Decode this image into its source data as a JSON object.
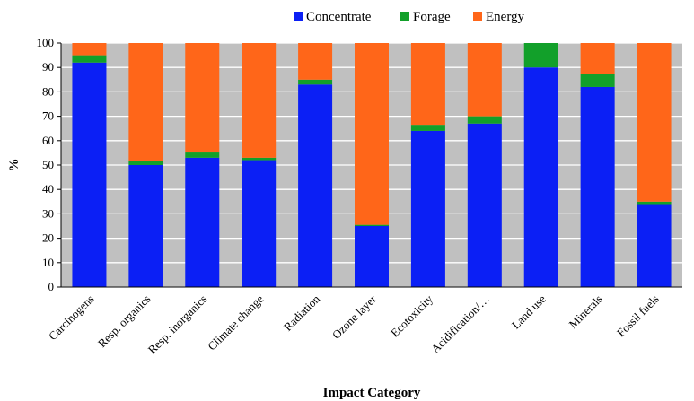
{
  "chart_data": {
    "type": "bar",
    "stacked": true,
    "categories": [
      "Carcinogens",
      "Resp. organics",
      "Resp. inorganics",
      "Climate change",
      "Radiation",
      "Ozone layer",
      "Ecotoxicity",
      "Acidification/…",
      "Land use",
      "Minerals",
      "Fossil fuels"
    ],
    "series": [
      {
        "name": "Concentrate",
        "color": "#0b1ff5",
        "values": [
          92,
          50,
          53,
          52,
          83,
          25,
          64,
          67,
          90,
          82,
          34
        ]
      },
      {
        "name": "Forage",
        "color": "#12a02a",
        "values": [
          3,
          1.5,
          2.5,
          1,
          2,
          0.5,
          2.5,
          3,
          10,
          5.5,
          1
        ]
      },
      {
        "name": "Energy",
        "color": "#ff6619",
        "values": [
          5,
          48.5,
          44.5,
          47,
          15,
          74.5,
          33.5,
          30,
          0,
          12.5,
          65
        ]
      }
    ],
    "xlabel": "Impact Category",
    "ylabel": "%",
    "ylim": [
      0,
      100
    ],
    "yticks": [
      0,
      10,
      20,
      30,
      40,
      50,
      60,
      70,
      80,
      90,
      100
    ],
    "grid": true,
    "legend_position": "top-center"
  }
}
